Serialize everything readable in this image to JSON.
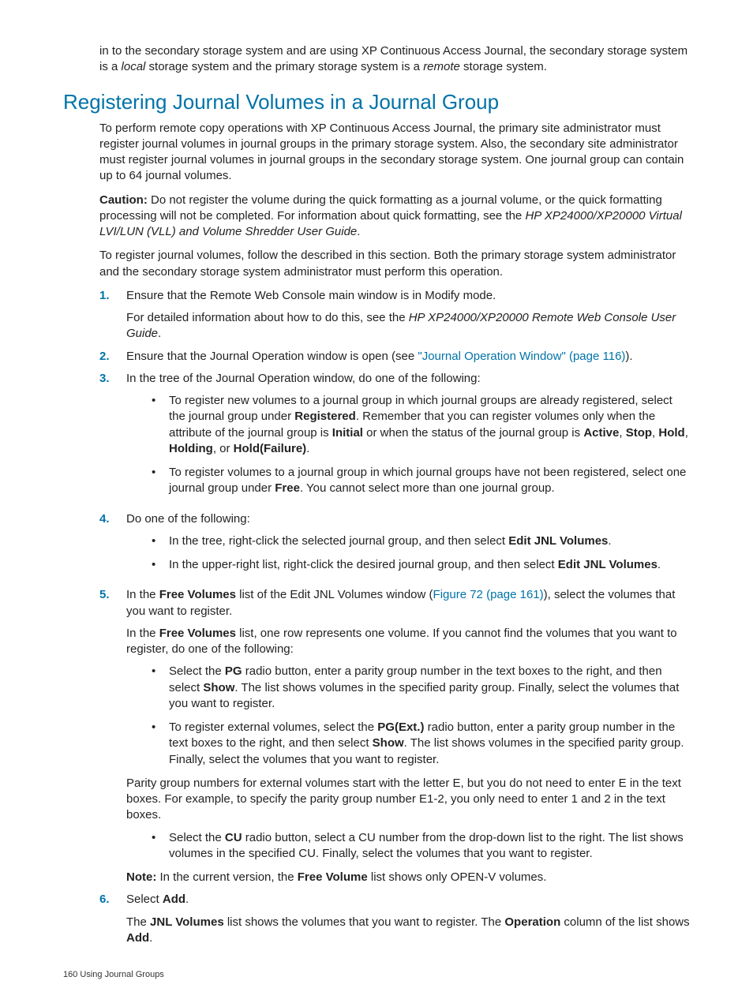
{
  "colors": {
    "link_blue": "#0073a8",
    "text_color": "#222222",
    "background": "#ffffff"
  },
  "typography": {
    "body_font_family": "Arial",
    "body_fontsize_pt": 11,
    "heading_fontsize_pt": 20,
    "heading_color": "#0073a8",
    "line_height": 1.35
  },
  "intro": {
    "prefix": "in to the secondary storage system and are using XP Continuous Access Journal, the secondary storage system is a ",
    "local": "local",
    "mid": " storage system and the primary storage system is a ",
    "remote": "remote",
    "suffix": " storage system."
  },
  "heading": "Registering Journal Volumes in a Journal Group",
  "para1": "To perform remote copy operations with XP Continuous Access Journal, the primary site administrator must register journal volumes in journal groups in the primary storage system. Also, the secondary site administrator must register journal volumes in journal groups in the secondary storage system. One journal group can contain up to 64 journal volumes.",
  "caution": {
    "label": "Caution:",
    "text": " Do not register the volume during the quick formatting as a journal volume, or the quick formatting processing will not be completed. For information about quick formatting, see the ",
    "ref": "HP XP24000/XP20000 Virtual LVI/LUN (VLL) and Volume Shredder User Guide",
    "period": "."
  },
  "para2": "To register journal volumes, follow the described in this section. Both the primary storage system administrator and the secondary storage system administrator must perform this operation.",
  "steps": {
    "s1": {
      "num": "1.",
      "p1": "Ensure that the Remote Web Console main window is in Modify mode.",
      "p2_pre": "For detailed information about how to do this, see the ",
      "p2_ref": "HP XP24000/XP20000 Remote Web Console User Guide",
      "p2_post": "."
    },
    "s2": {
      "num": "2.",
      "p1_pre": "Ensure that the Journal Operation window is open (see ",
      "link": "\"Journal Operation Window\" (page 116)",
      "p1_post": ")."
    },
    "s3": {
      "num": "3.",
      "p1": "In the tree of the Journal Operation window, do one of the following:",
      "b1": {
        "t1": "To register new volumes to a journal group in which journal groups are already registered, select the journal group under ",
        "registered": "Registered",
        "t2": ". Remember that you can register volumes only when the attribute of the journal group is ",
        "initial": "Initial",
        "t3": " or when the status of the journal group is ",
        "active": "Active",
        "c1": ", ",
        "stop": "Stop",
        "c2": ", ",
        "hold": "Hold",
        "c3": ", ",
        "holding": "Holding",
        "c4": ", or ",
        "holdfail": "Hold(Failure)",
        "t4": "."
      },
      "b2": {
        "t1": "To register volumes to a journal group in which journal groups have not been registered, select one journal group under ",
        "free": "Free",
        "t2": ". You cannot select more than one journal group."
      }
    },
    "s4": {
      "num": "4.",
      "p1": "Do one of the following:",
      "b1": {
        "t1": "In the tree, right-click the selected journal group, and then select ",
        "edit": "Edit JNL Volumes",
        "t2": "."
      },
      "b2": {
        "t1": "In the upper-right list, right-click the desired journal group, and then select ",
        "edit": "Edit JNL Volumes",
        "t2": "."
      }
    },
    "s5": {
      "num": "5.",
      "p1": {
        "t1": "In the ",
        "fv": "Free Volumes",
        "t2": " list of the Edit JNL Volumes window (",
        "link": "Figure 72 (page 161)",
        "t3": "), select the volumes that you want to register."
      },
      "p2": {
        "t1": "In the ",
        "fv": "Free Volumes",
        "t2": " list, one row represents one volume. If you cannot find the volumes that you want to register, do one of the following:"
      },
      "b1": {
        "t1": "Select the ",
        "pg": "PG",
        "t2": " radio button, enter a parity group number in the text boxes to the right, and then select ",
        "show": "Show",
        "t3": ". The list shows volumes in the specified parity group. Finally, select the volumes that you want to register."
      },
      "b2": {
        "t1": "To register external volumes, select the ",
        "pgext": "PG(Ext.)",
        "t2": " radio button, enter a parity group number in the text boxes to the right, and then select ",
        "show": "Show",
        "t3": ". The list shows volumes in the specified parity group. Finally, select the volumes that you want to register."
      },
      "p3": "Parity group numbers for external volumes start with the letter E, but you do not need to enter E in the text boxes. For example, to specify the parity group number E1-2, you only need to enter 1 and 2 in the text boxes.",
      "b3": {
        "t1": "Select the ",
        "cu": "CU",
        "t2": " radio button, select a CU number from the drop-down list to the right. The list shows volumes in the specified CU. Finally, select the volumes that you want to register."
      },
      "note": {
        "label": "Note:",
        "t1": " In the current version, the ",
        "fv": "Free Volume",
        "t2": " list shows only OPEN-V volumes."
      }
    },
    "s6": {
      "num": "6.",
      "p1": {
        "t1": "Select ",
        "add": "Add",
        "t2": "."
      },
      "p2": {
        "t1": "The ",
        "jnl": "JNL Volumes",
        "t2": " list shows the volumes that you want to register. The ",
        "op": "Operation",
        "t3": " column of the list shows ",
        "add": "Add",
        "t4": "."
      }
    }
  },
  "footer": {
    "pagenum": "160",
    "sep": "   ",
    "section": "Using Journal Groups"
  }
}
